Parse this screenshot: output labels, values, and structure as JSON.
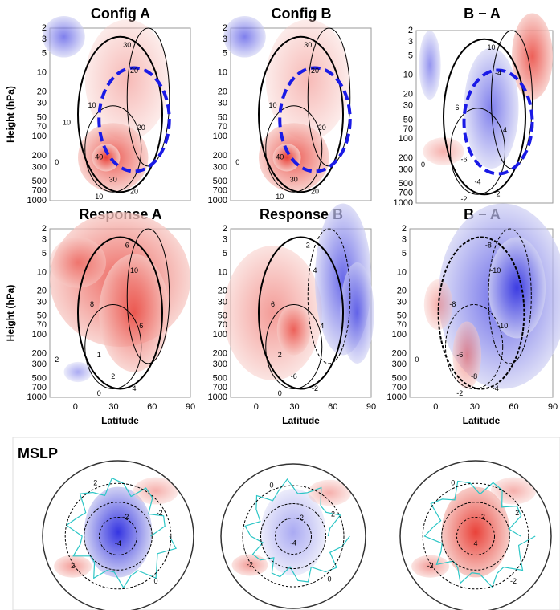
{
  "panels": [
    {
      "title": "Config A",
      "contour_labels": [
        "30",
        "20",
        "10",
        "20",
        "40",
        "30",
        "20",
        "10",
        "0",
        "10"
      ]
    },
    {
      "title": "Config B",
      "contour_labels": [
        "30",
        "20",
        "10",
        "20",
        "40",
        "30",
        "20",
        "10",
        "0"
      ]
    },
    {
      "title": "B − A",
      "contour_labels": [
        "10",
        "-4",
        "6",
        "4",
        "-6",
        "-4",
        "2",
        "-2",
        "0"
      ]
    },
    {
      "title": "Response A",
      "contour_labels": [
        "6",
        "10",
        "8",
        "6",
        "1",
        "2",
        "4",
        "0",
        "2"
      ]
    },
    {
      "title": "Response B",
      "contour_labels": [
        "2",
        "4",
        "6",
        "4",
        "2",
        "-6",
        "-2",
        "0"
      ]
    },
    {
      "title": "B − A",
      "contour_labels": [
        "-8",
        "-10",
        "-8",
        "-10",
        "-6",
        "-8",
        "-4",
        "-2",
        "0"
      ]
    }
  ],
  "y_axis_label": "Height (hPa)",
  "y_ticks": [
    "2",
    "3",
    "5",
    "10",
    "20",
    "30",
    "50",
    "70",
    "100",
    "200",
    "300",
    "500",
    "700",
    "1000"
  ],
  "x_ticks": [
    "0",
    "30",
    "60",
    "90"
  ],
  "x_axis_label": "Latitude",
  "map_title": "MSLP",
  "maps": [
    {
      "contour_labels": [
        "2",
        "-2",
        "-4",
        "0",
        "2",
        "-2"
      ]
    },
    {
      "contour_labels": [
        "-2",
        "-2",
        "-4",
        "0",
        "0",
        "2"
      ]
    },
    {
      "contour_labels": [
        "-2",
        "2",
        "4",
        "-2",
        "0",
        "2"
      ]
    }
  ]
}
